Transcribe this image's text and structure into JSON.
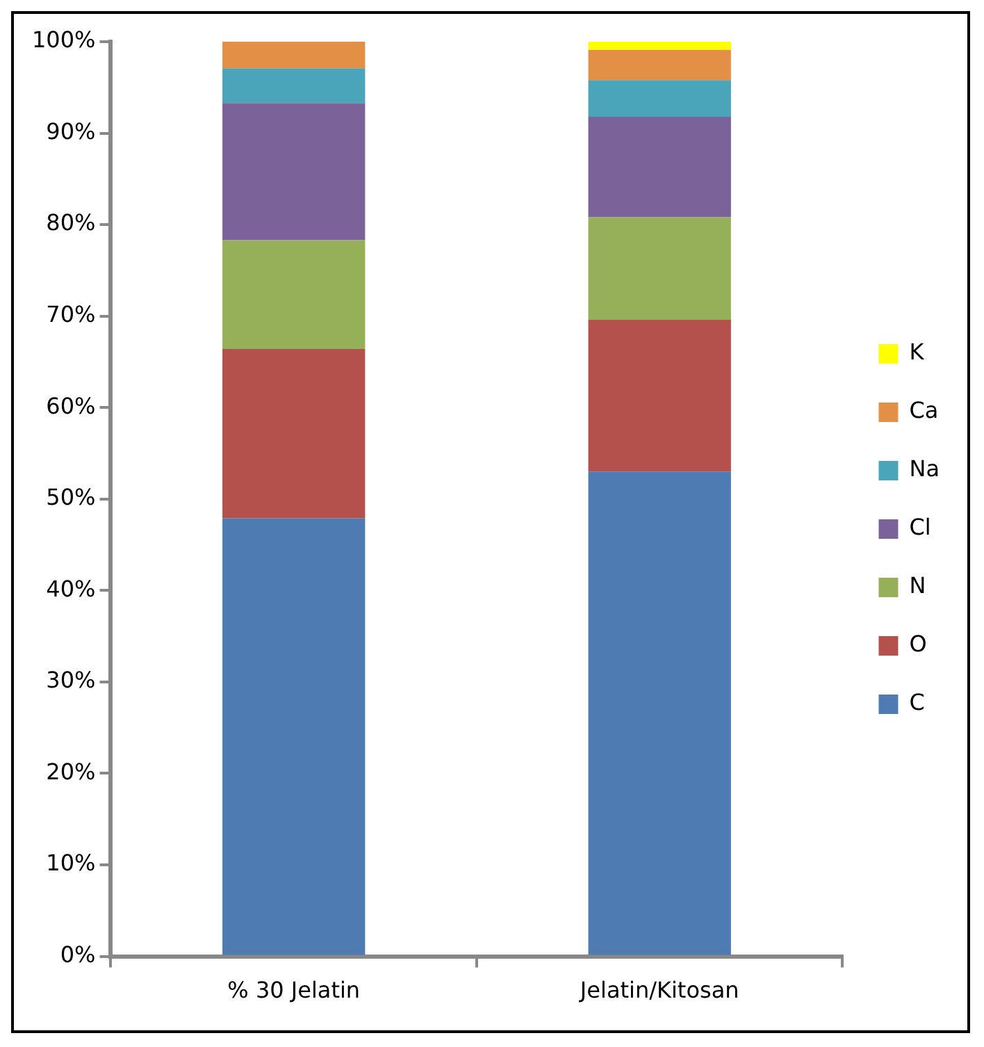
{
  "chart_data": {
    "type": "bar",
    "stacked": true,
    "categories": [
      "% 30 Jelatin",
      "Jelatin/Kitosan"
    ],
    "series": [
      {
        "name": "C",
        "color": "#4f7bb3",
        "values": [
          47.9,
          53.0
        ]
      },
      {
        "name": "O",
        "color": "#b5514d",
        "values": [
          18.5,
          16.6
        ]
      },
      {
        "name": "N",
        "color": "#96b05a",
        "values": [
          11.9,
          11.2
        ]
      },
      {
        "name": "Cl",
        "color": "#7b6399",
        "values": [
          15.0,
          11.0
        ]
      },
      {
        "name": "Na",
        "color": "#4aa4ba",
        "values": [
          3.8,
          4.0
        ]
      },
      {
        "name": "Ca",
        "color": "#e48f46",
        "values": [
          2.9,
          3.3
        ]
      },
      {
        "name": "K",
        "color": "#ffff00",
        "values": [
          0,
          0.9
        ]
      }
    ],
    "ylim": [
      0,
      100
    ],
    "yticks": [
      {
        "value": 0,
        "label": "0%"
      },
      {
        "value": 10,
        "label": "10%"
      },
      {
        "value": 20,
        "label": "20%"
      },
      {
        "value": 30,
        "label": "30%"
      },
      {
        "value": 40,
        "label": "40%"
      },
      {
        "value": 50,
        "label": "50%"
      },
      {
        "value": 60,
        "label": "60%"
      },
      {
        "value": 70,
        "label": "70%"
      },
      {
        "value": 80,
        "label": "80%"
      },
      {
        "value": 90,
        "label": "90%"
      },
      {
        "value": 100,
        "label": "100%"
      }
    ],
    "grid": false,
    "legend": "right"
  }
}
